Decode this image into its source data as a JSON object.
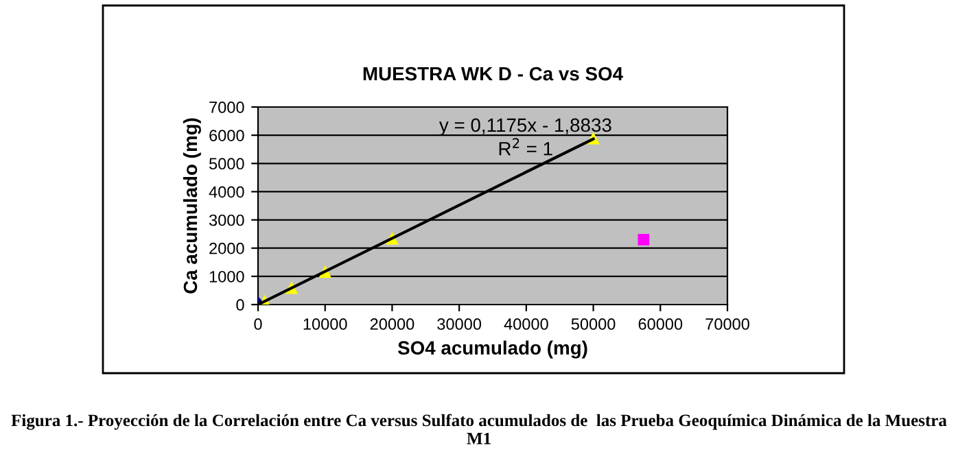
{
  "chart_data": {
    "type": "scatter",
    "title": "MUESTRA WK D - Ca vs SO4",
    "xlabel": "SO4 acumulado (mg)",
    "ylabel": "Ca acumulado (mg)",
    "series": [
      {
        "color": "#000080",
        "marker": "diamond",
        "x": [
          0
        ],
        "values": [
          0
        ]
      },
      {
        "color": "#ffff00",
        "marker": "triangle",
        "x": [
          1000,
          5000,
          10000,
          20000,
          50000
        ],
        "values": [
          100,
          580,
          1150,
          2330,
          5880
        ]
      },
      {
        "color": "#ff00ff",
        "marker": "square",
        "x": [
          57500
        ],
        "values": [
          2300
        ]
      },
      {
        "type": "line",
        "color": "#000000",
        "marker": "none",
        "x": [
          0,
          50000
        ],
        "values": [
          0,
          5870
        ]
      }
    ],
    "xlim": [
      0,
      70000
    ],
    "xticks": [
      0,
      10000,
      20000,
      30000,
      40000,
      50000,
      60000,
      70000
    ],
    "ylim": [
      0,
      7000
    ],
    "yticks": [
      0,
      1000,
      2000,
      3000,
      4000,
      5000,
      6000,
      7000
    ],
    "grid": "y",
    "legend": false,
    "annotations": [
      "y = 0,1175x - 1,8833",
      "R$^{2}$ = 1",
      "Figura 1.- Proyección de la Correlación entre Ca versus Sulfato acumulados de  las Prueba Geoquímica Dinámica de la Muestra M1"
    ]
  }
}
